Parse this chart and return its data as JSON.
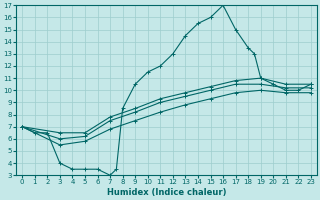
{
  "title": "",
  "xlabel": "Humidex (Indice chaleur)",
  "xlim": [
    -0.5,
    23.5
  ],
  "ylim": [
    3,
    17
  ],
  "xticks": [
    0,
    1,
    2,
    3,
    4,
    5,
    6,
    7,
    8,
    9,
    10,
    11,
    12,
    13,
    14,
    15,
    16,
    17,
    18,
    19,
    20,
    21,
    22,
    23
  ],
  "yticks": [
    3,
    4,
    5,
    6,
    7,
    8,
    9,
    10,
    11,
    12,
    13,
    14,
    15,
    16,
    17
  ],
  "bg_color": "#c5e8e8",
  "line_color": "#006666",
  "grid_color": "#9ecece",
  "main_x": [
    0,
    1,
    2,
    3,
    4,
    5,
    6,
    7,
    7.5,
    8,
    9,
    10,
    11,
    12,
    13,
    14,
    15,
    16,
    17,
    18,
    18.5,
    19,
    20,
    21,
    22,
    23
  ],
  "main_y": [
    7,
    6.5,
    6.5,
    4,
    3.5,
    3.5,
    3.5,
    3,
    3.5,
    8.5,
    10.5,
    11.5,
    12,
    13,
    14.5,
    15.5,
    16,
    17,
    15,
    13.5,
    13,
    11,
    10.5,
    10,
    10,
    10.5
  ],
  "line1_x": [
    0,
    3,
    5,
    7,
    9,
    11,
    13,
    15,
    17,
    19,
    21,
    23
  ],
  "line1_y": [
    7,
    6.5,
    6.5,
    7.8,
    8.5,
    9.3,
    9.8,
    10.3,
    10.8,
    11.0,
    10.5,
    10.5
  ],
  "line2_x": [
    0,
    3,
    5,
    7,
    9,
    11,
    13,
    15,
    17,
    19,
    21,
    23
  ],
  "line2_y": [
    7,
    6.0,
    6.2,
    7.5,
    8.2,
    9.0,
    9.5,
    10.0,
    10.5,
    10.5,
    10.2,
    10.2
  ],
  "line3_x": [
    0,
    3,
    5,
    7,
    9,
    11,
    13,
    15,
    17,
    19,
    21,
    23
  ],
  "line3_y": [
    7,
    5.5,
    5.8,
    6.8,
    7.5,
    8.2,
    8.8,
    9.3,
    9.8,
    10.0,
    9.8,
    9.8
  ]
}
